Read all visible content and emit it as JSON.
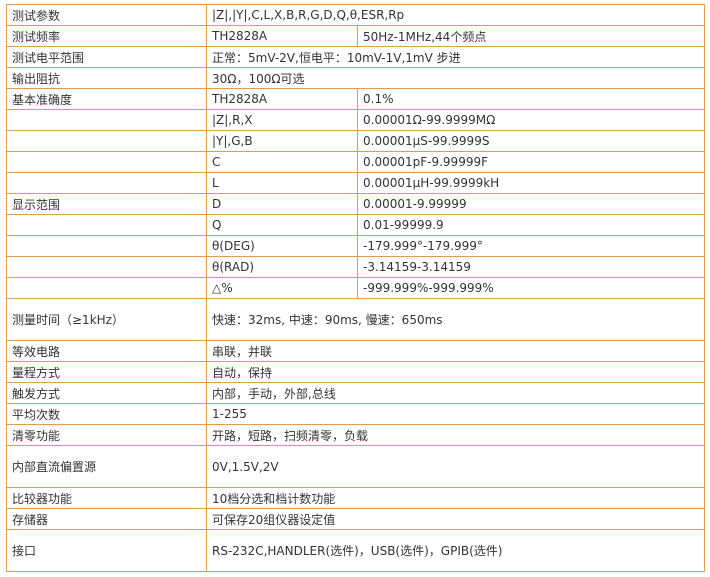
{
  "table": {
    "rows": [
      [
        "测试参数",
        "|Z|,|Y|,C,L,X,B,R,G,D,Q,θ,ESR,Rp"
      ],
      [
        "测试频率",
        "TH2828A",
        "50Hz-1MHz,44个频点"
      ],
      [
        "测试电平范围",
        "正常：5mV-2V,恒电平：10mV-1V,1mV 步进"
      ],
      [
        "输出阻抗",
        "30Ω，100Ω可选"
      ],
      [
        "基本准确度",
        "TH2828A",
        "0.1%"
      ],
      [
        null,
        "|Z|,R,X",
        "0.00001Ω-99.9999MΩ"
      ],
      [
        null,
        "|Y|,G,B",
        "0.00001μS-99.9999S"
      ],
      [
        null,
        "C",
        "0.00001pF-9.99999F"
      ],
      [
        null,
        "L",
        "0.00001μH-99.9999kH"
      ],
      [
        "显示范围",
        "D",
        "0.00001-9.99999"
      ],
      [
        null,
        "Q",
        "0.01-99999.9"
      ],
      [
        null,
        "θ(DEG)",
        "-179.999°-179.999°"
      ],
      [
        null,
        "θ(RAD)",
        "-3.14159-3.14159"
      ],
      [
        null,
        "△%",
        "-999.999%-999.999%"
      ],
      [
        "测量时间（≥1kHz）",
        "快速：32ms, 中速：90ms, 慢速：650ms"
      ],
      [
        "等效电路",
        "串联，并联"
      ],
      [
        "量程方式",
        "自动，保持"
      ],
      [
        "触发方式",
        "内部，手动，外部,总线"
      ],
      [
        "平均次数",
        "1-255"
      ],
      [
        "清零功能",
        "开路，短路，扫频清零，负载"
      ],
      [
        "内部直流偏置源",
        "0V,1.5V,2V"
      ],
      [
        "比较器功能",
        "10档分选和档计数功能"
      ],
      [
        "存储器",
        "可保存20组仪器设定值"
      ],
      [
        "接口",
        "RS-232C,HANDLER(选件)，USB(选件)，GPIB(选件)"
      ]
    ]
  }
}
